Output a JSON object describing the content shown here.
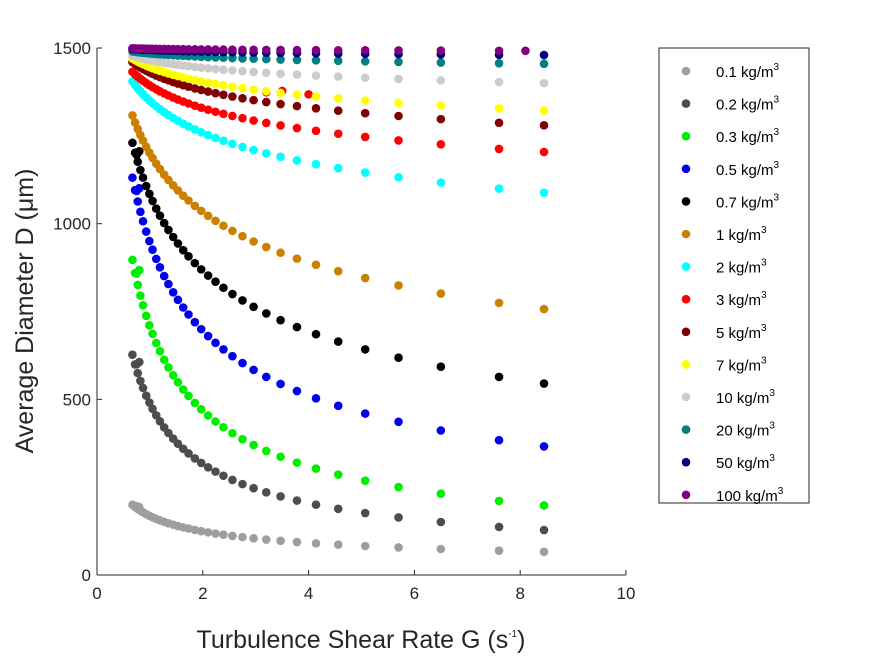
{
  "chart_data": {
    "type": "scatter",
    "title": "",
    "xlabel": "Turbulence Shear Rate G (s",
    "xlabel_sup": "-1",
    "xlabel_end": ")",
    "ylabel": "Average Diameter D (",
    "ylabel_mu": "μ",
    "ylabel_end": "m)",
    "xlim": [
      0,
      10
    ],
    "ylim": [
      0,
      1500
    ],
    "xticks": [
      "0",
      "2",
      "4",
      "6",
      "8",
      "10"
    ],
    "yticks": [
      "0",
      "500",
      "1000",
      "1500"
    ],
    "grid": false,
    "legend_position": "right-outside",
    "legend_unit": "kg/m",
    "legend_unit_sup": "3",
    "x": [
      0.67,
      0.72,
      0.77,
      0.82,
      0.87,
      0.93,
      0.99,
      1.05,
      1.12,
      1.19,
      1.27,
      1.35,
      1.44,
      1.53,
      1.63,
      1.73,
      1.85,
      1.97,
      2.1,
      2.24,
      2.39,
      2.56,
      2.75,
      2.96,
      3.2,
      3.47,
      3.78,
      4.14,
      4.56,
      5.07,
      5.7,
      6.5,
      7.6,
      8.45
    ],
    "series": [
      {
        "name": "0.1",
        "color": "#9e9e9e",
        "d0": 200,
        "d1": 66,
        "xmax": 8.45,
        "extra": [
          [
            0.75,
            196
          ],
          [
            0.8,
            193
          ]
        ]
      },
      {
        "name": "0.2",
        "color": "#4d4d4d",
        "d0": 627,
        "d1": 128,
        "xmax": 8.45,
        "extra": [
          [
            0.75,
            600
          ],
          [
            0.8,
            606
          ]
        ]
      },
      {
        "name": "0.3",
        "color": "#00ee00",
        "d0": 897,
        "d1": 198,
        "xmax": 8.45,
        "extra": [
          [
            0.75,
            858
          ],
          [
            0.8,
            868
          ]
        ]
      },
      {
        "name": "0.5",
        "color": "#0000ee",
        "d0": 1131,
        "d1": 366,
        "xmax": 8.45,
        "extra": [
          [
            0.75,
            1093
          ],
          [
            0.8,
            1101
          ]
        ]
      },
      {
        "name": "0.7",
        "color": "#000000",
        "d0": 1230,
        "d1": 545,
        "xmax": 8.45,
        "extra": [
          [
            0.75,
            1196
          ],
          [
            0.8,
            1206
          ]
        ]
      },
      {
        "name": "1",
        "color": "#cc8000",
        "d0": 1308,
        "d1": 757,
        "xmax": 8.45,
        "extra": []
      },
      {
        "name": "2",
        "color": "#00ffff",
        "d0": 1405,
        "d1": 1088,
        "xmax": 8.45,
        "extra": []
      },
      {
        "name": "3",
        "color": "#ff0000",
        "d0": 1432,
        "d1": 1204,
        "xmax": 8.45,
        "extra": [
          [
            3.2,
            1374
          ],
          [
            3.5,
            1378
          ],
          [
            4.0,
            1368
          ]
        ]
      },
      {
        "name": "5",
        "color": "#800000",
        "d0": 1460,
        "d1": 1280,
        "xmax": 8.45,
        "extra": []
      },
      {
        "name": "7",
        "color": "#ffff00",
        "d0": 1470,
        "d1": 1322,
        "xmax": 8.45,
        "extra": []
      },
      {
        "name": "10",
        "color": "#cccccc",
        "d0": 1478,
        "d1": 1400,
        "xmax": 8.45,
        "extra": []
      },
      {
        "name": "20",
        "color": "#008080",
        "d0": 1490,
        "d1": 1455,
        "xmax": 8.45,
        "extra": []
      },
      {
        "name": "50",
        "color": "#000080",
        "d0": 1497,
        "d1": 1480,
        "xmax": 8.45,
        "extra": []
      },
      {
        "name": "100",
        "color": "#800080",
        "d0": 1499,
        "d1": 1492,
        "xmax": 8.1,
        "extra": []
      }
    ]
  }
}
